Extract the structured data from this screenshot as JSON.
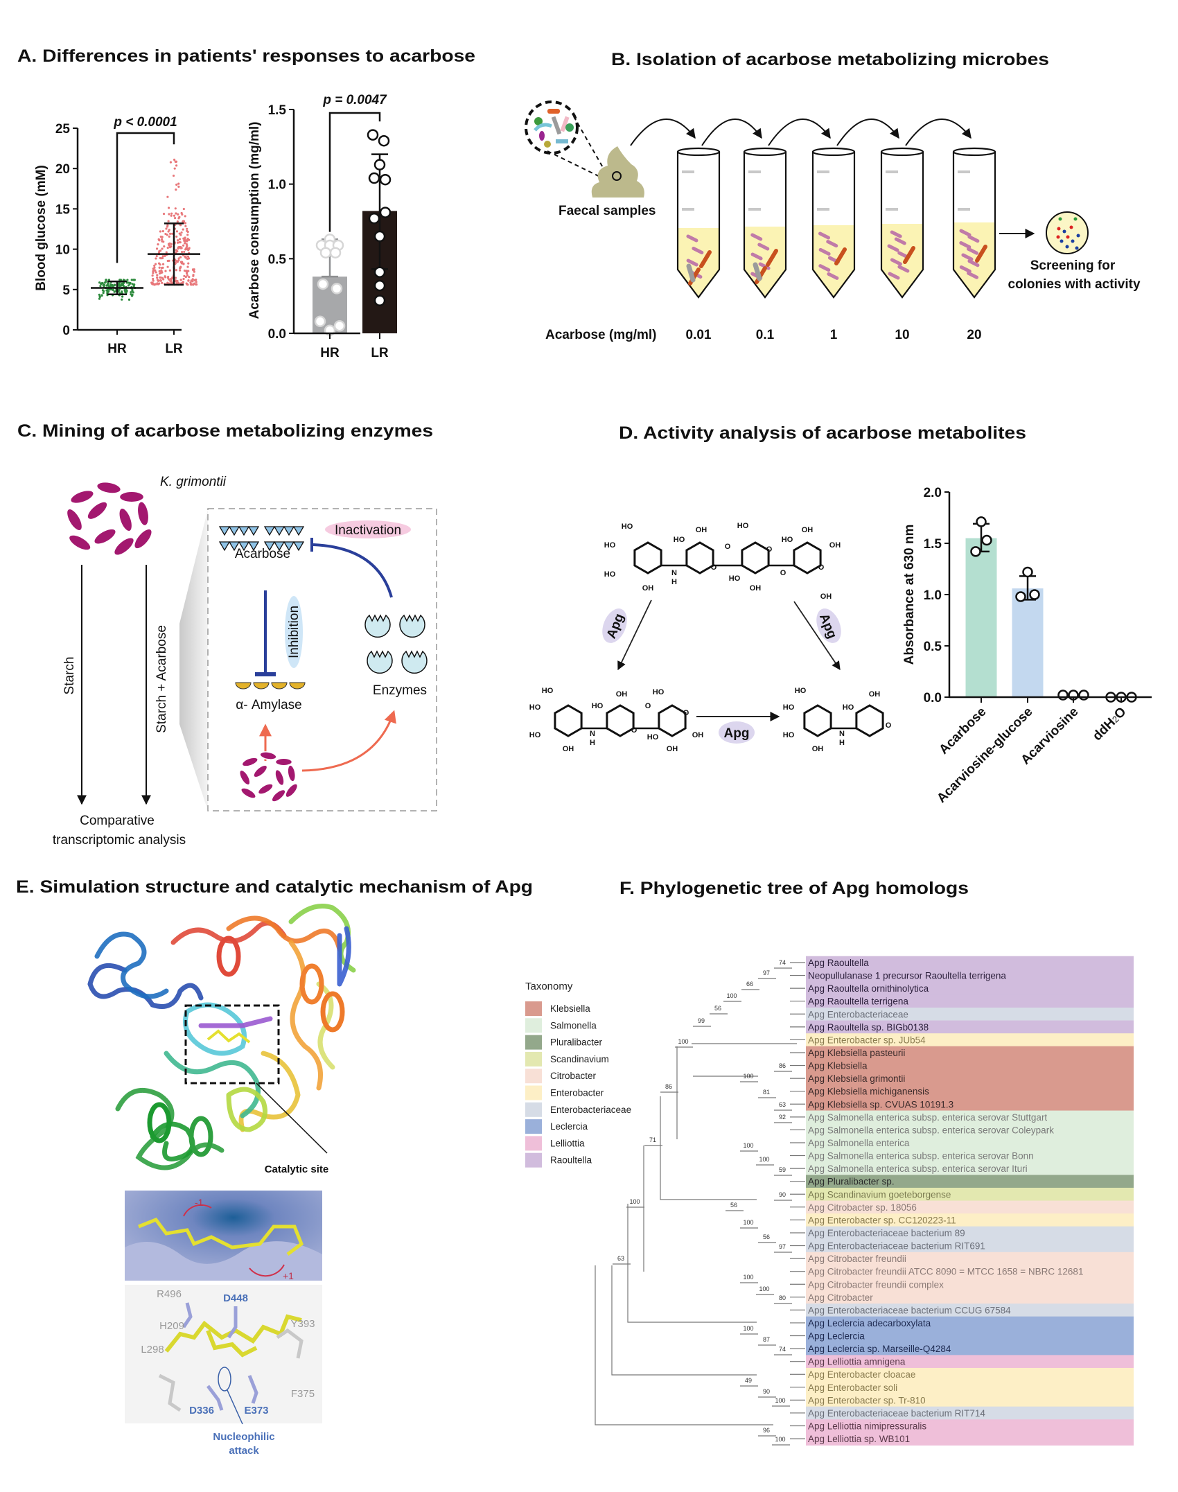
{
  "panels": {
    "a": {
      "title": "A. Differences in patients' responses to acarbose"
    },
    "b": {
      "title": "B. Isolation of acarbose metabolizing microbes",
      "faecal_label": "Faecal samples",
      "acarbose_label": "Acarbose (mg/ml)",
      "concentrations": [
        "0.01",
        "0.1",
        "1",
        "10",
        "20"
      ],
      "screening_line1": "Screening for",
      "screening_line2": "colonies with activity"
    },
    "c": {
      "title": "C. Mining of acarbose metabolizing enzymes",
      "organism": "K. grimontii",
      "arrow_left": "Starch",
      "arrow_right": "Starch + Acarbose",
      "result_line1": "Comparative",
      "result_line2": "transcriptomic analysis",
      "acarbose": "Acarbose",
      "inactivation": "Inactivation",
      "inhibition": "Inhibition",
      "amylase": "α- Amylase",
      "enzymes": "Enzymes"
    },
    "d": {
      "title": "D. Activity analysis of acarbose metabolites",
      "enzyme_label": "Apg",
      "molecule_top_labels": [
        "HO",
        "HO",
        "HO",
        "OH",
        "N",
        "H",
        "HO",
        "OH",
        "O",
        "O",
        "HO",
        "O",
        "HO",
        "OH",
        "O",
        "HO",
        "OH",
        "OH",
        "O",
        "OH"
      ],
      "molecule_left_labels": [
        "HO",
        "HO",
        "HO",
        "OH",
        "N",
        "H",
        "HO",
        "OH",
        "O",
        "O",
        "HO",
        "O",
        "HO",
        "OH",
        "OH"
      ],
      "molecule_right_labels": [
        "HO",
        "HO",
        "HO",
        "OH",
        "N",
        "H",
        "HO",
        "OH",
        "O"
      ]
    },
    "e": {
      "title": "E. Simulation structure and catalytic mechanism of Apg",
      "catalytic_site": "Catalytic site",
      "subsite_minus": "-1",
      "subsite_plus": "+1",
      "residues_grey": [
        "R496",
        "H209",
        "Y393",
        "L298",
        "F375"
      ],
      "residues_blue": [
        "D448",
        "D336",
        "E373"
      ],
      "nucleophilic_line1": "Nucleophilic",
      "nucleophilic_line2": "attack"
    },
    "f": {
      "title": "F. Phylogenetic tree of Apg homologs"
    }
  },
  "chart_data": [
    {
      "type": "scatter",
      "ylabel": "Blood glucose (mM)",
      "categories": [
        "HR",
        "LR"
      ],
      "ylim": [
        0,
        25
      ],
      "yticks": [
        "0",
        "5",
        "10",
        "15",
        "20",
        "25"
      ],
      "annotation": "p < 0.0001",
      "groups": [
        {
          "name": "HR",
          "mean": 5.2,
          "error": [
            4.4,
            6.0
          ],
          "range": [
            2.9,
            6.2
          ],
          "color": "#2e8b3e"
        },
        {
          "name": "LR",
          "mean": 9.4,
          "error": [
            5.6,
            13.2
          ],
          "range": [
            5.6,
            22.0
          ],
          "color": "#e8777a"
        }
      ]
    },
    {
      "type": "bar",
      "ylabel": "Acarbose consumption (mg/ml)",
      "categories": [
        "HR",
        "LR"
      ],
      "ylim": [
        0,
        1.5
      ],
      "yticks": [
        "0.0",
        "0.5",
        "1.0",
        "1.5"
      ],
      "annotation": "p = 0.0047",
      "values": [
        0.38,
        0.82
      ],
      "error": [
        [
          0.38,
          0.63
        ],
        [
          0.43,
          1.2
        ]
      ],
      "points": [
        [
          0.63,
          0.59,
          0.59,
          0.59,
          0.54,
          0.54,
          0.33,
          0.3,
          0.08,
          0.05,
          0.02
        ],
        [
          1.33,
          1.29,
          1.13,
          1.04,
          1.03,
          0.81,
          0.77,
          0.65,
          0.41,
          0.32,
          0.22
        ]
      ],
      "colors": [
        "#a7a8aa",
        "#231815"
      ]
    },
    {
      "type": "bar",
      "ylabel": "Absorbance at 630 nm",
      "categories": [
        "Acarbose",
        "Acarviosine-glucose",
        "Acarviosine",
        "ddH2O"
      ],
      "ylim": [
        0,
        2.0
      ],
      "yticks": [
        "0.0",
        "0.5",
        "1.0",
        "1.5",
        "2.0"
      ],
      "values": [
        1.55,
        1.06,
        0.02,
        0.0
      ],
      "error": [
        [
          1.42,
          1.69
        ],
        [
          0.95,
          1.18
        ],
        null,
        null
      ],
      "points": [
        [
          1.71,
          1.53,
          1.42
        ],
        [
          1.22,
          0.98,
          1.0
        ],
        [
          0.02,
          0.02,
          0.02
        ],
        [
          0.0,
          0.0,
          0.0
        ]
      ],
      "colors": [
        "#b4dfd0",
        "#c3d8ef",
        "#ffffff",
        "#ffffff"
      ]
    }
  ],
  "tree": {
    "legend_title": "Taxonomy",
    "groups": [
      {
        "name": "Klebsiella",
        "color": "#d99a8e",
        "text": "#3a2a2a"
      },
      {
        "name": "Salmonella",
        "color": "#dfeedd",
        "text": "#7a7a7a"
      },
      {
        "name": "Pluralibacter",
        "color": "#93a88b",
        "text": "#2a2a2a"
      },
      {
        "name": "Scandinavium",
        "color": "#e3e8b0",
        "text": "#7a7a50"
      },
      {
        "name": "Citrobacter",
        "color": "#f8e0d6",
        "text": "#8a7a76"
      },
      {
        "name": "Enterobacter",
        "color": "#fdefc6",
        "text": "#8a7c50"
      },
      {
        "name": "Enterobacteriaceae",
        "color": "#d6dce6",
        "text": "#6a6e78"
      },
      {
        "name": "Leclercia",
        "color": "#9ab0da",
        "text": "#1e2a50"
      },
      {
        "name": "Lelliottia",
        "color": "#efbfd9",
        "text": "#5a3a4a"
      },
      {
        "name": "Raoultella",
        "color": "#d1bcdd",
        "text": "#2a1e3a"
      }
    ],
    "leaves": [
      {
        "label": "Apg Raoultella",
        "group": "Raoultella"
      },
      {
        "label": "Neopullulanase 1 precursor Raoultella terrigena",
        "group": "Raoultella"
      },
      {
        "label": "Apg Raoultella ornithinolytica",
        "group": "Raoultella"
      },
      {
        "label": "Apg Raoultella terrigena",
        "group": "Raoultella"
      },
      {
        "label": "Apg Enterobacteriaceae",
        "group": "Enterobacteriaceae"
      },
      {
        "label": "Apg Raoultella sp. BIGb0138",
        "group": "Raoultella"
      },
      {
        "label": "Apg Enterobacter sp. JUb54",
        "group": "Enterobacter"
      },
      {
        "label": "Apg Klebsiella pasteurii",
        "group": "Klebsiella"
      },
      {
        "label": "Apg Klebsiella",
        "group": "Klebsiella"
      },
      {
        "label": "Apg Klebsiella grimontii",
        "group": "Klebsiella"
      },
      {
        "label": "Apg Klebsiella michiganensis",
        "group": "Klebsiella"
      },
      {
        "label": "Apg Klebsiella sp. CVUAS 10191.3",
        "group": "Klebsiella"
      },
      {
        "label": "Apg Salmonella enterica subsp. enterica serovar Stuttgart",
        "group": "Salmonella"
      },
      {
        "label": "Apg Salmonella enterica subsp. enterica serovar Coleypark",
        "group": "Salmonella"
      },
      {
        "label": "Apg Salmonella enterica",
        "group": "Salmonella"
      },
      {
        "label": "Apg Salmonella enterica subsp. enterica serovar Bonn",
        "group": "Salmonella"
      },
      {
        "label": "Apg Salmonella enterica subsp. enterica serovar Ituri",
        "group": "Salmonella"
      },
      {
        "label": "Apg Pluralibacter sp.",
        "group": "Pluralibacter"
      },
      {
        "label": "Apg Scandinavium goeteborgense",
        "group": "Scandinavium"
      },
      {
        "label": "Apg Citrobacter sp. 18056",
        "group": "Citrobacter"
      },
      {
        "label": "Apg Enterobacter sp. CC120223-11",
        "group": "Enterobacter"
      },
      {
        "label": "Apg Enterobacteriaceae bacterium 89",
        "group": "Enterobacteriaceae"
      },
      {
        "label": "Apg Enterobacteriaceae bacterium RIT691",
        "group": "Enterobacteriaceae"
      },
      {
        "label": "Apg Citrobacter freundii",
        "group": "Citrobacter"
      },
      {
        "label": "Apg Citrobacter freundii ATCC 8090 = MTCC 1658 = NBRC 12681",
        "group": "Citrobacter"
      },
      {
        "label": "Apg Citrobacter freundii complex",
        "group": "Citrobacter"
      },
      {
        "label": "Apg Citrobacter",
        "group": "Citrobacter"
      },
      {
        "label": "Apg Enterobacteriaceae bacterium CCUG 67584",
        "group": "Enterobacteriaceae"
      },
      {
        "label": "Apg Leclercia adecarboxylata",
        "group": "Leclercia"
      },
      {
        "label": "Apg Leclercia",
        "group": "Leclercia"
      },
      {
        "label": "Apg Leclercia sp. Marseille-Q4284",
        "group": "Leclercia"
      },
      {
        "label": "Apg Lelliottia amnigena",
        "group": "Lelliottia"
      },
      {
        "label": "Apg Enterobacter cloacae",
        "group": "Enterobacter"
      },
      {
        "label": "Apg Enterobacter soli",
        "group": "Enterobacter"
      },
      {
        "label": "Apg Enterobacter sp. Tr-810",
        "group": "Enterobacter"
      },
      {
        "label": "Apg Enterobacteriaceae bacterium RIT714",
        "group": "Enterobacteriaceae"
      },
      {
        "label": "Apg Lelliottia nimipressuralis",
        "group": "Lelliottia"
      },
      {
        "label": "Apg Lelliottia sp. WB101",
        "group": "Lelliottia"
      }
    ],
    "bootstrap": [
      "74",
      "97",
      "66",
      "100",
      "56",
      "99",
      "100",
      "86",
      "100",
      "86",
      "81",
      "63",
      "92",
      "71",
      "100",
      "100",
      "59",
      "90",
      "100",
      "56",
      "100",
      "56",
      "97",
      "63",
      "100",
      "100",
      "80",
      "100",
      "87",
      "74",
      "49",
      "90",
      "100",
      "96",
      "100"
    ]
  }
}
